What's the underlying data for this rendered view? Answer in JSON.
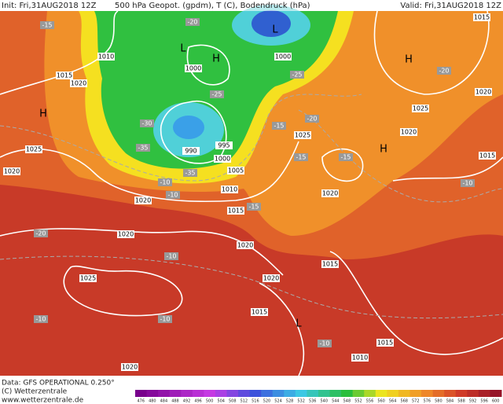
{
  "header": {
    "init": "Init: Fri,31AUG2018 12Z",
    "title": "500 hPa Geopot. (gpdm), T (C), Bodendruck (hPa)",
    "valid": "Valid: Fri,31AUG2018 12Z"
  },
  "footer": {
    "data": "Data: GFS OPERATIONAL 0.250°",
    "copyright": "(C) Wetterzentrale",
    "url": "www.wetterzentrale.de"
  },
  "colorbar": {
    "labels": [
      476,
      480,
      484,
      488,
      492,
      496,
      500,
      504,
      508,
      512,
      516,
      520,
      524,
      528,
      532,
      536,
      540,
      544,
      548,
      552,
      556,
      560,
      564,
      568,
      572,
      576,
      580,
      584,
      588,
      592,
      596,
      600
    ]
  },
  "map": {
    "pressure_labels": [
      1010,
      1015,
      1020,
      1025,
      1020,
      1000,
      1000,
      995,
      990,
      1000,
      1005,
      1010,
      1015,
      1020,
      1020,
      1020,
      1020,
      1025,
      1015,
      1015,
      1020,
      1025,
      1025,
      1020,
      1020,
      1015,
      1015,
      1015,
      1010,
      1020
    ],
    "temperature_labels": [
      -15,
      -20,
      -25,
      -25,
      -30,
      -35,
      -35,
      -10,
      -10,
      -15,
      -15,
      -20,
      -20,
      -15,
      -15,
      -10,
      -10,
      -10,
      -10,
      -10,
      -20
    ],
    "systems": [
      "H",
      "H",
      "L",
      "L",
      "H",
      "H",
      "L"
    ]
  }
}
